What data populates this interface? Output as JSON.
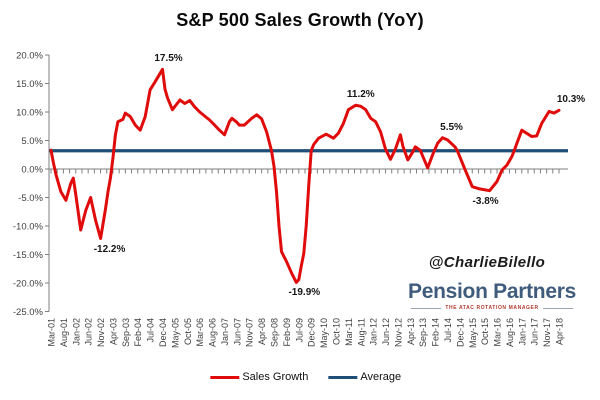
{
  "chart_data": {
    "type": "line",
    "title": "S&P 500 Sales Growth (YoY)",
    "x_tick_labels": [
      "Mar-01",
      "Aug-01",
      "Jan-02",
      "Jun-02",
      "Nov-02",
      "Apr-03",
      "Sep-03",
      "Feb-04",
      "Jul-04",
      "Dec-04",
      "May-05",
      "Oct-05",
      "Mar-06",
      "Aug-06",
      "Jan-07",
      "Jun-07",
      "Nov-07",
      "Apr-08",
      "Sep-08",
      "Feb-09",
      "Jul-09",
      "Dec-09",
      "May-10",
      "Oct-10",
      "Mar-11",
      "Aug-11",
      "Jan-12",
      "Jun-12",
      "Nov-12",
      "Apr-13",
      "Sep-13",
      "Feb-14",
      "Jul-14",
      "Dec-14",
      "May-15",
      "Oct-15",
      "Mar-16",
      "Aug-16",
      "Jan-17",
      "Jun-17",
      "Nov-17",
      "Apr-18"
    ],
    "x_label_interval_months": 5,
    "y_ticks": [
      "20.0%",
      "15.0%",
      "10.0%",
      "5.0%",
      "0.0%",
      "-5.0%",
      "-10.0%",
      "-15.0%",
      "-20.0%",
      "-25.0%"
    ],
    "ylim": [
      -25,
      20
    ],
    "grid": "none",
    "legend_position": "bottom",
    "series": [
      {
        "name": "Sales Growth",
        "color": "#e00b0b",
        "points": [
          [
            0,
            3.3
          ],
          [
            1,
            1.0
          ],
          [
            2,
            -1.0
          ],
          [
            4,
            -4.0
          ],
          [
            6,
            -5.5
          ],
          [
            8,
            -2.5
          ],
          [
            9,
            -1.6
          ],
          [
            10,
            -4.5
          ],
          [
            12,
            -10.7
          ],
          [
            14,
            -7.3
          ],
          [
            16,
            -5.0
          ],
          [
            18,
            -9.0
          ],
          [
            20,
            -12.2
          ],
          [
            22,
            -7.0
          ],
          [
            23,
            -4.0
          ],
          [
            24,
            -1.5
          ],
          [
            25,
            2.0
          ],
          [
            26,
            6.0
          ],
          [
            27,
            8.3
          ],
          [
            29,
            8.7
          ],
          [
            30,
            9.8
          ],
          [
            32,
            9.2
          ],
          [
            34,
            7.7
          ],
          [
            36,
            6.8
          ],
          [
            38,
            9.2
          ],
          [
            40,
            13.9
          ],
          [
            42,
            15.3
          ],
          [
            45,
            17.5
          ],
          [
            46,
            14.0
          ],
          [
            47,
            12.5
          ],
          [
            49,
            10.4
          ],
          [
            52,
            12.1
          ],
          [
            54,
            11.5
          ],
          [
            56,
            12.0
          ],
          [
            58,
            10.9
          ],
          [
            60,
            10.0
          ],
          [
            62,
            9.3
          ],
          [
            64,
            8.6
          ],
          [
            66,
            7.7
          ],
          [
            68,
            6.8
          ],
          [
            70,
            6.0
          ],
          [
            72,
            8.3
          ],
          [
            73,
            8.9
          ],
          [
            75,
            8.2
          ],
          [
            76,
            7.7
          ],
          [
            78,
            7.7
          ],
          [
            81,
            8.9
          ],
          [
            83,
            9.5
          ],
          [
            85,
            8.8
          ],
          [
            87,
            6.5
          ],
          [
            89,
            3.2
          ],
          [
            90,
            0.5
          ],
          [
            91,
            -4.0
          ],
          [
            92,
            -10.0
          ],
          [
            93,
            -14.5
          ],
          [
            95,
            -16.2
          ],
          [
            97,
            -18.2
          ],
          [
            99,
            -19.9
          ],
          [
            100,
            -19.4
          ],
          [
            101,
            -17.0
          ],
          [
            102,
            -14.8
          ],
          [
            103,
            -10.0
          ],
          [
            104,
            -3.0
          ],
          [
            105,
            3.2
          ],
          [
            106,
            4.3
          ],
          [
            108,
            5.4
          ],
          [
            111,
            6.1
          ],
          [
            114,
            5.4
          ],
          [
            116,
            6.3
          ],
          [
            118,
            8.0
          ],
          [
            120,
            10.4
          ],
          [
            123,
            11.2
          ],
          [
            125,
            11.0
          ],
          [
            127,
            10.4
          ],
          [
            129,
            8.9
          ],
          [
            131,
            8.3
          ],
          [
            133,
            6.5
          ],
          [
            135,
            3.5
          ],
          [
            137,
            1.7
          ],
          [
            139,
            3.5
          ],
          [
            141,
            6.0
          ],
          [
            142,
            4.0
          ],
          [
            144,
            1.6
          ],
          [
            146,
            3.0
          ],
          [
            147,
            3.9
          ],
          [
            149,
            3.3
          ],
          [
            152,
            0.2
          ],
          [
            154,
            2.5
          ],
          [
            156,
            4.5
          ],
          [
            158,
            5.5
          ],
          [
            160,
            5.1
          ],
          [
            163,
            3.9
          ],
          [
            164,
            3.2
          ],
          [
            167,
            0.0
          ],
          [
            170,
            -3.1
          ],
          [
            173,
            -3.5
          ],
          [
            177,
            -3.8
          ],
          [
            180,
            -2.2
          ],
          [
            182,
            -0.2
          ],
          [
            184,
            0.7
          ],
          [
            186,
            2.2
          ],
          [
            187,
            3.3
          ],
          [
            188,
            4.5
          ],
          [
            190,
            6.8
          ],
          [
            194,
            5.7
          ],
          [
            196,
            5.8
          ],
          [
            198,
            8.0
          ],
          [
            201,
            10.1
          ],
          [
            203,
            9.8
          ],
          [
            205,
            10.3
          ]
        ]
      },
      {
        "name": "Average",
        "color": "#1f4e79",
        "value": 3.2
      }
    ],
    "annotations": [
      {
        "label": "17.5%",
        "m": 45,
        "v": 17.5,
        "pos": "above",
        "dx": 6
      },
      {
        "label": "-12.2%",
        "m": 20,
        "v": -12.2,
        "pos": "below",
        "dx": 9
      },
      {
        "label": "-19.9%",
        "m": 99,
        "v": -19.9,
        "pos": "below",
        "dx": 8
      },
      {
        "label": "11.2%",
        "m": 123,
        "v": 11.2,
        "pos": "above",
        "dx": 5
      },
      {
        "label": "5.5%",
        "m": 158,
        "v": 5.5,
        "pos": "above",
        "dx": 9
      },
      {
        "label": "-3.8%",
        "m": 177,
        "v": -3.8,
        "pos": "below",
        "dx": -4
      },
      {
        "label": "10.3%",
        "m": 205,
        "v": 10.3,
        "pos": "above",
        "dx": 12
      }
    ],
    "axis_color": "#7f7f7f",
    "tick_text_color": "#3f3f3f"
  },
  "branding": {
    "handle": "@CharlieBilello",
    "logo_name": "Pension Partners",
    "logo_tagline": "THE ATAC ROTATION MANAGER",
    "logo_color": "#3f5c7d",
    "tagline_color": "#b03a2e"
  }
}
